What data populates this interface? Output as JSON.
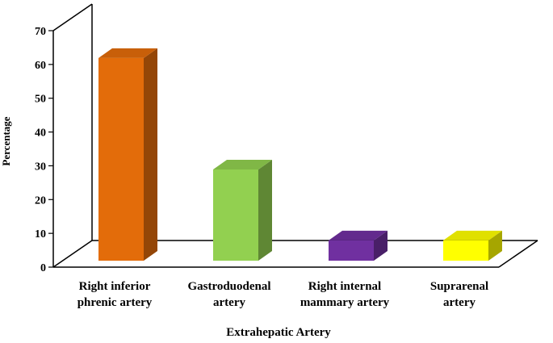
{
  "chart_data": {
    "type": "bar",
    "title": "",
    "xlabel": "Extrahepatic Artery",
    "ylabel": "Percentage",
    "ylim": [
      0,
      70
    ],
    "yticks": [
      0,
      10,
      20,
      30,
      40,
      50,
      60,
      70
    ],
    "grid": false,
    "legend": "none",
    "categories": [
      [
        "Right inferior",
        "phrenic artery"
      ],
      [
        "Gastroduodenal",
        "artery"
      ],
      [
        "Right internal",
        "mammary artery"
      ],
      [
        "Suprarenal",
        "artery"
      ]
    ],
    "values": [
      60,
      27,
      6,
      6
    ],
    "colors": [
      "#E36C0A",
      "#92D050",
      "#7030A0",
      "#FFFF00"
    ]
  }
}
